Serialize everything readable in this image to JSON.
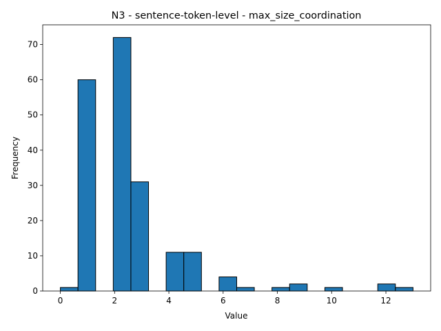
{
  "chart_data": {
    "type": "bar",
    "title": "N3 - sentence-token-level - max_size_coordination",
    "xlabel": "Value",
    "ylabel": "Frequency",
    "xlim": [
      -0.65,
      13.65
    ],
    "ylim": [
      0,
      75.6
    ],
    "xticks": [
      0,
      2,
      4,
      6,
      8,
      10,
      12
    ],
    "yticks": [
      0,
      10,
      20,
      30,
      40,
      50,
      60,
      70
    ],
    "grid": false,
    "bar_color": "#1f77b4",
    "edge_color": "#000000",
    "bins": [
      {
        "x0": 0.0,
        "x1": 0.65,
        "value": 1
      },
      {
        "x0": 0.65,
        "x1": 1.3,
        "value": 60
      },
      {
        "x0": 1.3,
        "x1": 1.95,
        "value": 0
      },
      {
        "x0": 1.95,
        "x1": 2.6,
        "value": 72
      },
      {
        "x0": 2.6,
        "x1": 3.25,
        "value": 31
      },
      {
        "x0": 3.25,
        "x1": 3.9,
        "value": 0
      },
      {
        "x0": 3.9,
        "x1": 4.55,
        "value": 11
      },
      {
        "x0": 4.55,
        "x1": 5.2,
        "value": 11
      },
      {
        "x0": 5.2,
        "x1": 5.85,
        "value": 0
      },
      {
        "x0": 5.85,
        "x1": 6.5,
        "value": 4
      },
      {
        "x0": 6.5,
        "x1": 7.15,
        "value": 1
      },
      {
        "x0": 7.15,
        "x1": 7.8,
        "value": 0
      },
      {
        "x0": 7.8,
        "x1": 8.45,
        "value": 1
      },
      {
        "x0": 8.45,
        "x1": 9.1,
        "value": 2
      },
      {
        "x0": 9.1,
        "x1": 9.75,
        "value": 0
      },
      {
        "x0": 9.75,
        "x1": 10.4,
        "value": 1
      },
      {
        "x0": 10.4,
        "x1": 11.05,
        "value": 0
      },
      {
        "x0": 11.05,
        "x1": 11.7,
        "value": 0
      },
      {
        "x0": 11.7,
        "x1": 12.35,
        "value": 2
      },
      {
        "x0": 12.35,
        "x1": 13.0,
        "value": 1
      }
    ]
  }
}
